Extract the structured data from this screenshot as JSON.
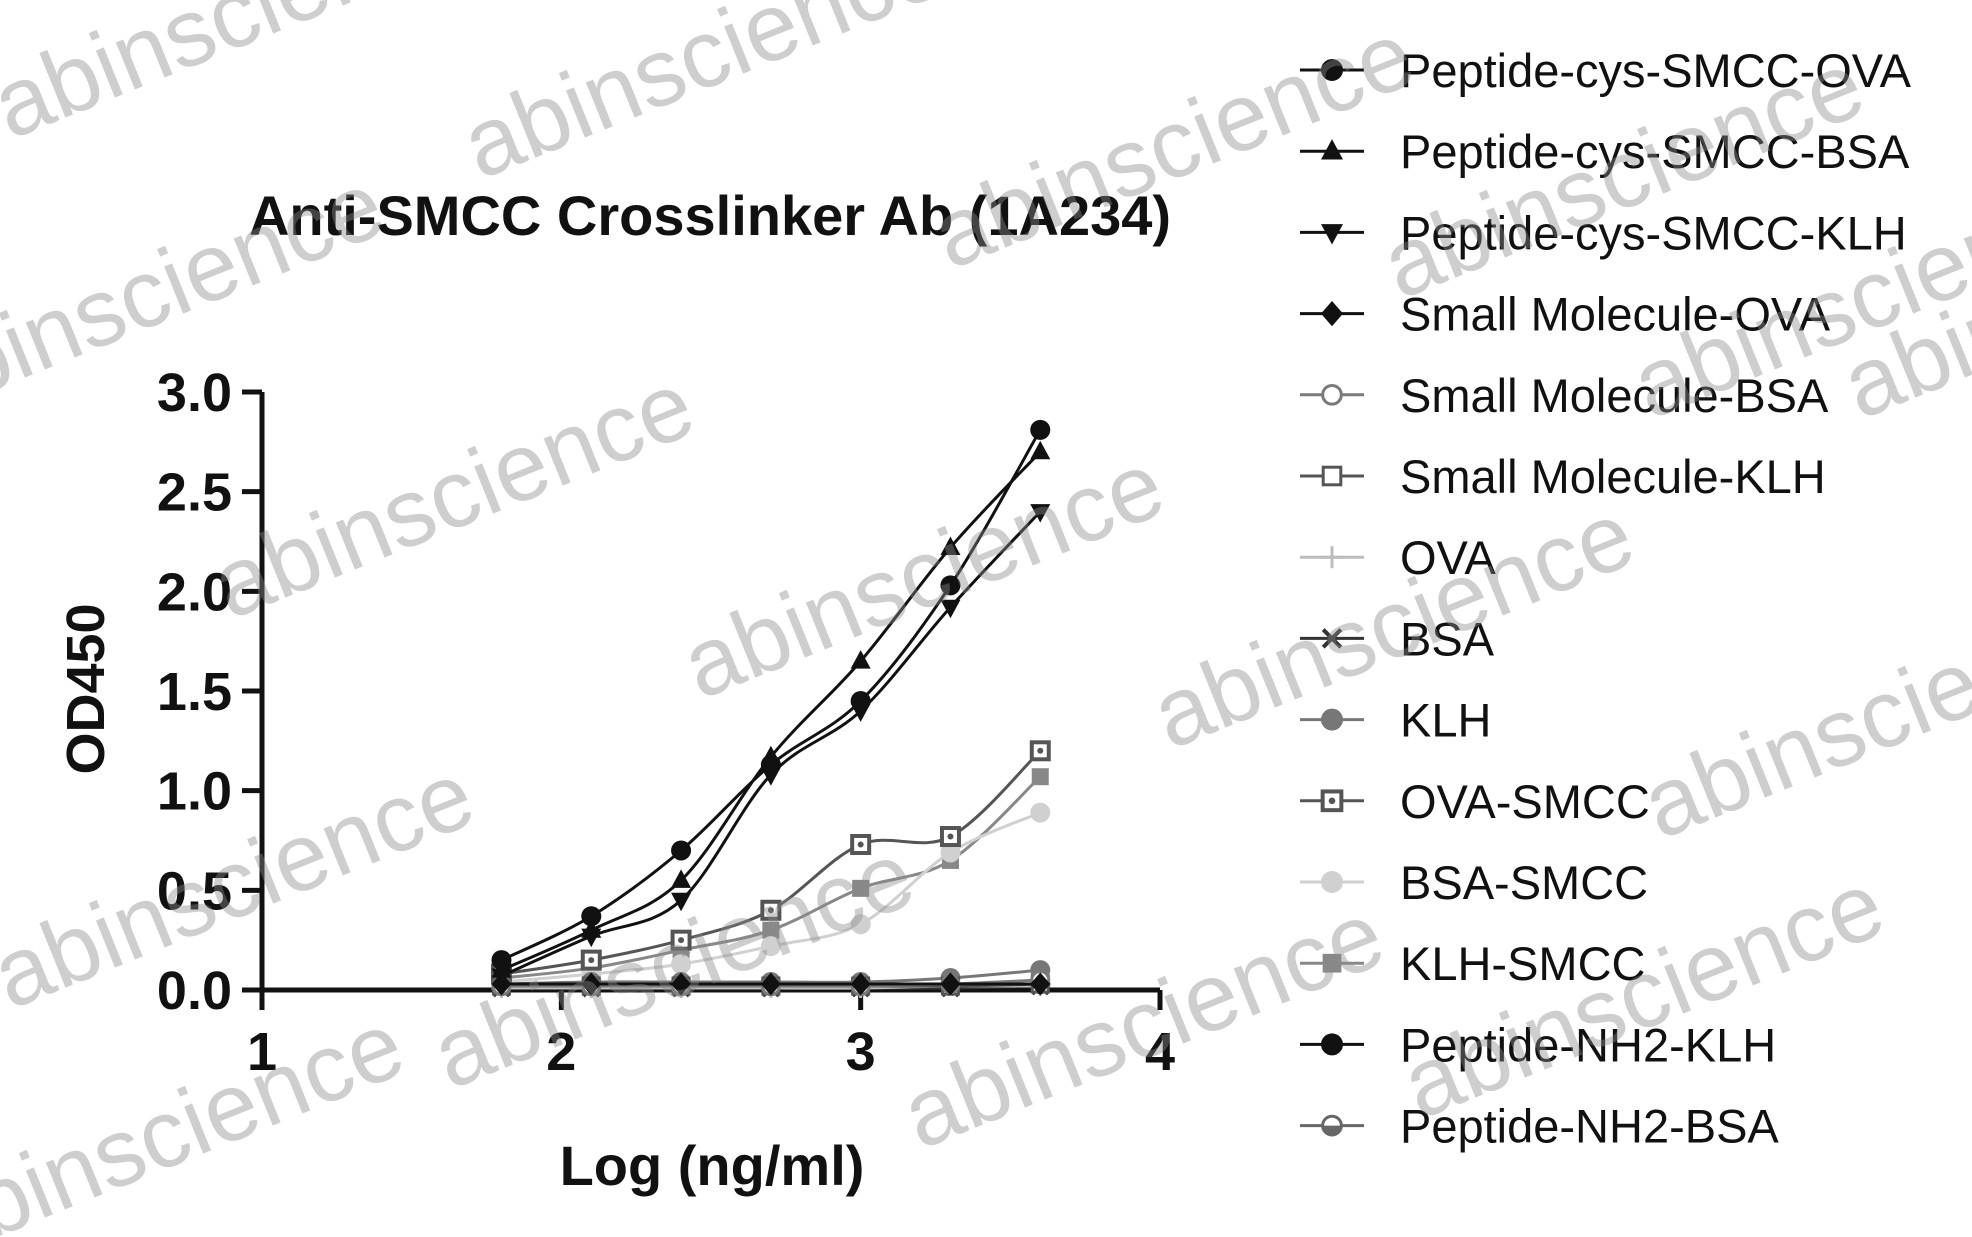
{
  "watermark": "abinscience",
  "chart_data": {
    "type": "line",
    "title": "Anti-SMCC Crosslinker Ab (1A234)",
    "xlabel": "Log (ng/ml)",
    "ylabel": "OD450",
    "xlim": [
      1,
      4
    ],
    "ylim": [
      0,
      3.0
    ],
    "xticks": [
      1,
      2,
      3,
      4
    ],
    "xtick_labels": [
      "1",
      "2",
      "3",
      "4"
    ],
    "yticks": [
      0,
      0.5,
      1.0,
      1.5,
      2.0,
      2.5,
      3.0
    ],
    "ytick_labels": [
      "0.0",
      "0.5",
      "1.0",
      "1.5",
      "2.0",
      "2.5",
      "3.0"
    ],
    "grid": false,
    "legend_position": "right",
    "x": [
      1.8,
      2.1,
      2.4,
      2.7,
      3.0,
      3.3,
      3.6
    ],
    "series": [
      {
        "name": "Peptide-cys-SMCC-OVA",
        "color": "#111111",
        "marker": "circle",
        "values": [
          0.15,
          0.37,
          0.7,
          1.13,
          1.45,
          2.03,
          2.81
        ]
      },
      {
        "name": "Peptide-cys-SMCC-BSA",
        "color": "#111111",
        "marker": "triangle-up",
        "values": [
          0.1,
          0.3,
          0.55,
          1.17,
          1.65,
          2.22,
          2.7
        ]
      },
      {
        "name": "Peptide-cys-SMCC-KLH",
        "color": "#111111",
        "marker": "triangle-down",
        "values": [
          0.07,
          0.27,
          0.45,
          1.08,
          1.4,
          1.92,
          2.4
        ]
      },
      {
        "name": "Small Molecule-OVA",
        "color": "#111111",
        "marker": "diamond",
        "values": [
          0.03,
          0.03,
          0.03,
          0.03,
          0.03,
          0.03,
          0.03
        ]
      },
      {
        "name": "Small Molecule-BSA",
        "color": "#7a7a7a",
        "marker": "open-circle",
        "values": [
          0.02,
          0.02,
          0.02,
          0.02,
          0.02,
          0.03,
          0.05
        ]
      },
      {
        "name": "Small Molecule-KLH",
        "color": "#555555",
        "marker": "open-square",
        "values": [
          0.02,
          0.02,
          0.02,
          0.02,
          0.02,
          0.02,
          0.03
        ]
      },
      {
        "name": "OVA",
        "color": "#bdbdbd",
        "marker": "plus",
        "values": [
          0.01,
          0.01,
          0.01,
          0.01,
          0.01,
          0.02,
          0.02
        ]
      },
      {
        "name": "BSA",
        "color": "#333333",
        "marker": "cross",
        "values": [
          0.01,
          0.01,
          0.01,
          0.01,
          0.01,
          0.01,
          0.02
        ]
      },
      {
        "name": "KLH",
        "color": "#777777",
        "marker": "filled-circle",
        "values": [
          0.03,
          0.04,
          0.04,
          0.04,
          0.04,
          0.06,
          0.1
        ]
      },
      {
        "name": "OVA-SMCC",
        "color": "#555555",
        "marker": "dot-square",
        "values": [
          0.08,
          0.15,
          0.25,
          0.4,
          0.73,
          0.77,
          1.2
        ]
      },
      {
        "name": "BSA-SMCC",
        "color": "#d0d0d0",
        "marker": "filled-circle",
        "values": [
          0.04,
          0.08,
          0.13,
          0.22,
          0.33,
          0.69,
          0.89
        ]
      },
      {
        "name": "KLH-SMCC",
        "color": "#888888",
        "marker": "filled-square",
        "values": [
          0.06,
          0.11,
          0.2,
          0.3,
          0.51,
          0.65,
          1.07
        ]
      },
      {
        "name": "Peptide-NH2-KLH",
        "color": "#111111",
        "marker": "filled-circle",
        "values": [
          0.02,
          0.02,
          0.02,
          0.02,
          0.02,
          0.02,
          0.03
        ]
      },
      {
        "name": "Peptide-NH2-BSA",
        "color": "#666666",
        "marker": "half-circle",
        "values": [
          0.02,
          0.02,
          0.02,
          0.02,
          0.02,
          0.02,
          0.03
        ]
      }
    ]
  }
}
